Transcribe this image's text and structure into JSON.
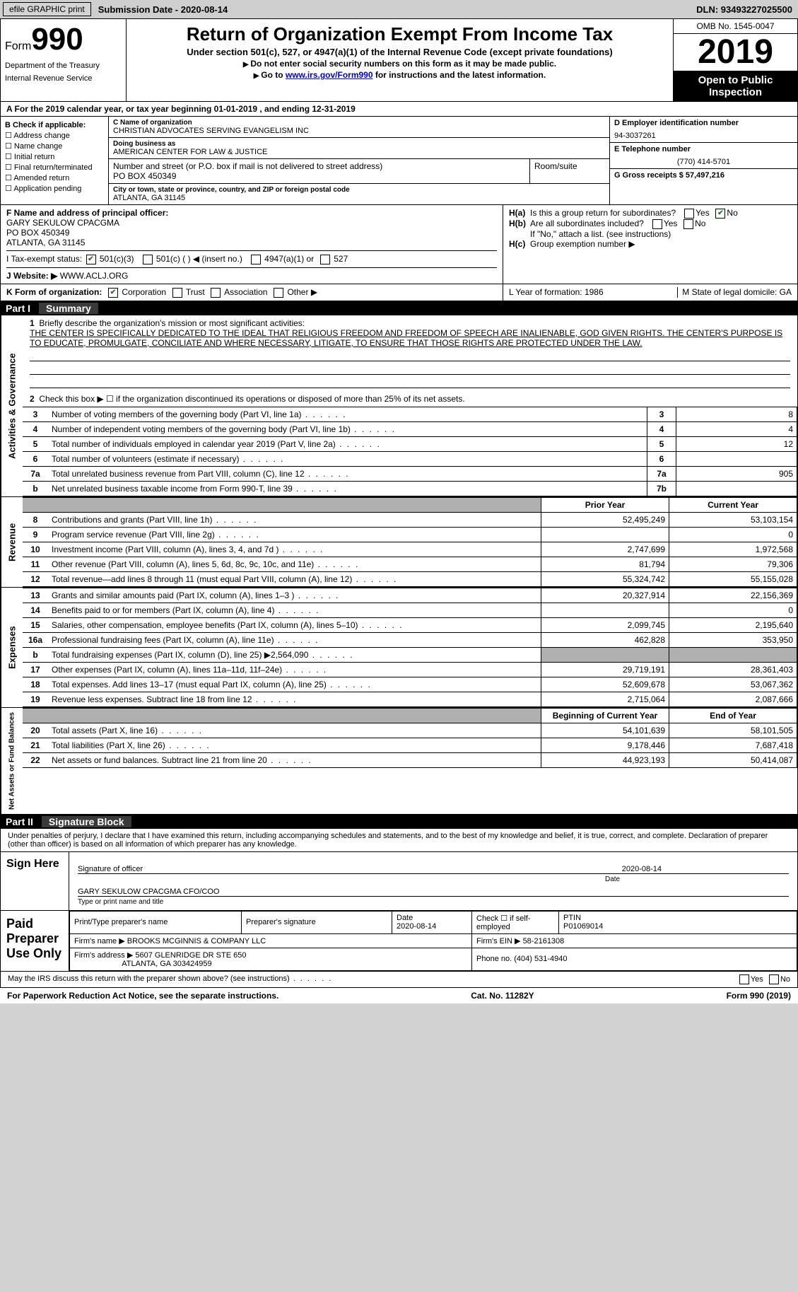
{
  "topbar": {
    "print_label": "efile GRAPHIC print",
    "submission_label": "Submission Date - 2020-08-14",
    "dln": "DLN: 93493227025500"
  },
  "header": {
    "form_label": "Form",
    "form_num": "990",
    "dept": "Department of the Treasury",
    "irs": "Internal Revenue Service",
    "title": "Return of Organization Exempt From Income Tax",
    "subtitle": "Under section 501(c), 527, or 4947(a)(1) of the Internal Revenue Code (except private foundations)",
    "note1": "Do not enter social security numbers on this form as it may be made public.",
    "note2_pre": "Go to ",
    "note2_link": "www.irs.gov/Form990",
    "note2_post": " for instructions and the latest information.",
    "omb": "OMB No. 1545-0047",
    "year": "2019",
    "open_public": "Open to Public Inspection"
  },
  "period": "A For the 2019 calendar year, or tax year beginning 01-01-2019   , and ending 12-31-2019",
  "blockB": {
    "title": "B Check if applicable:",
    "items": [
      "Address change",
      "Name change",
      "Initial return",
      "Final return/terminated",
      "Amended return",
      "Application pending"
    ]
  },
  "blockC": {
    "name_lbl": "C Name of organization",
    "name": "CHRISTIAN ADVOCATES SERVING EVANGELISM INC",
    "dba_lbl": "Doing business as",
    "dba": "AMERICAN CENTER FOR LAW & JUSTICE",
    "addr_lbl": "Number and street (or P.O. box if mail is not delivered to street address)",
    "addr": "PO BOX 450349",
    "room_lbl": "Room/suite",
    "city_lbl": "City or town, state or province, country, and ZIP or foreign postal code",
    "city": "ATLANTA, GA  31145"
  },
  "blockD": {
    "lbl": "D Employer identification number",
    "val": "94-3037261"
  },
  "blockE": {
    "lbl": "E Telephone number",
    "val": "(770) 414-5701"
  },
  "blockG": {
    "lbl": "G Gross receipts $ 57,497,216"
  },
  "blockF": {
    "lbl": "F Name and address of principal officer:",
    "name": "GARY SEKULOW CPACGMA",
    "addr1": "PO BOX 450349",
    "addr2": "ATLANTA, GA  31145"
  },
  "blockH": {
    "a": "Is this a group return for subordinates?",
    "b": "Are all subordinates included?",
    "note": "If \"No,\" attach a list. (see instructions)",
    "c": "Group exemption number ▶",
    "yes": "Yes",
    "no": "No"
  },
  "taxexempt": {
    "lbl": "I    Tax-exempt status:",
    "o1": "501(c)(3)",
    "o2": "501(c) (  ) ◀ (insert no.)",
    "o3": "4947(a)(1) or",
    "o4": "527"
  },
  "website": {
    "lbl": "J    Website: ▶",
    "val": "WWW.ACLJ.ORG"
  },
  "formorg": {
    "lbl": "K Form of organization:",
    "o1": "Corporation",
    "o2": "Trust",
    "o3": "Association",
    "o4": "Other ▶"
  },
  "yearform": "L Year of formation: 1986",
  "domicile": "M State of legal domicile: GA",
  "part1": {
    "num": "Part I",
    "title": "Summary"
  },
  "summary": {
    "q1": "Briefly describe the organization's mission or most significant activities:",
    "mission": "THE CENTER IS SPECIFICALLY DEDICATED TO THE IDEAL THAT RELIGIOUS FREEDOM AND FREEDOM OF SPEECH ARE INALIENABLE, GOD GIVEN RIGHTS. THE CENTER'S PURPOSE IS TO EDUCATE, PROMULGATE, CONCILIATE AND WHERE NECESSARY, LITIGATE, TO ENSURE THAT THOSE RIGHTS ARE PROTECTED UNDER THE LAW.",
    "q2": "Check this box ▶ ☐  if the organization discontinued its operations or disposed of more than 25% of its net assets."
  },
  "side_labels": {
    "ag": "Activities & Governance",
    "rev": "Revenue",
    "exp": "Expenses",
    "nab": "Net Assets or Fund Balances"
  },
  "gov_rows": [
    {
      "n": "3",
      "d": "Number of voting members of the governing body (Part VI, line 1a)",
      "r": "3",
      "v": "8"
    },
    {
      "n": "4",
      "d": "Number of independent voting members of the governing body (Part VI, line 1b)",
      "r": "4",
      "v": "4"
    },
    {
      "n": "5",
      "d": "Total number of individuals employed in calendar year 2019 (Part V, line 2a)",
      "r": "5",
      "v": "12"
    },
    {
      "n": "6",
      "d": "Total number of volunteers (estimate if necessary)",
      "r": "6",
      "v": ""
    },
    {
      "n": "7a",
      "d": "Total unrelated business revenue from Part VIII, column (C), line 12",
      "r": "7a",
      "v": "905"
    },
    {
      "n": "b",
      "d": "Net unrelated business taxable income from Form 990-T, line 39",
      "r": "7b",
      "v": ""
    }
  ],
  "money_header": {
    "prior": "Prior Year",
    "current": "Current Year"
  },
  "rev_rows": [
    {
      "n": "8",
      "d": "Contributions and grants (Part VIII, line 1h)",
      "p": "52,495,249",
      "c": "53,103,154"
    },
    {
      "n": "9",
      "d": "Program service revenue (Part VIII, line 2g)",
      "p": "",
      "c": "0"
    },
    {
      "n": "10",
      "d": "Investment income (Part VIII, column (A), lines 3, 4, and 7d )",
      "p": "2,747,699",
      "c": "1,972,568"
    },
    {
      "n": "11",
      "d": "Other revenue (Part VIII, column (A), lines 5, 6d, 8c, 9c, 10c, and 11e)",
      "p": "81,794",
      "c": "79,306"
    },
    {
      "n": "12",
      "d": "Total revenue—add lines 8 through 11 (must equal Part VIII, column (A), line 12)",
      "p": "55,324,742",
      "c": "55,155,028"
    }
  ],
  "exp_rows": [
    {
      "n": "13",
      "d": "Grants and similar amounts paid (Part IX, column (A), lines 1–3 )",
      "p": "20,327,914",
      "c": "22,156,369"
    },
    {
      "n": "14",
      "d": "Benefits paid to or for members (Part IX, column (A), line 4)",
      "p": "",
      "c": "0"
    },
    {
      "n": "15",
      "d": "Salaries, other compensation, employee benefits (Part IX, column (A), lines 5–10)",
      "p": "2,099,745",
      "c": "2,195,640"
    },
    {
      "n": "16a",
      "d": "Professional fundraising fees (Part IX, column (A), line 11e)",
      "p": "462,828",
      "c": "353,950"
    },
    {
      "n": "b",
      "d": "Total fundraising expenses (Part IX, column (D), line 25) ▶2,564,090",
      "p": "SHADE",
      "c": "SHADE"
    },
    {
      "n": "17",
      "d": "Other expenses (Part IX, column (A), lines 11a–11d, 11f–24e)",
      "p": "29,719,191",
      "c": "28,361,403"
    },
    {
      "n": "18",
      "d": "Total expenses. Add lines 13–17 (must equal Part IX, column (A), line 25)",
      "p": "52,609,678",
      "c": "53,067,362"
    },
    {
      "n": "19",
      "d": "Revenue less expenses. Subtract line 18 from line 12",
      "p": "2,715,064",
      "c": "2,087,666"
    }
  ],
  "bal_header": {
    "beg": "Beginning of Current Year",
    "end": "End of Year"
  },
  "bal_rows": [
    {
      "n": "20",
      "d": "Total assets (Part X, line 16)",
      "p": "54,101,639",
      "c": "58,101,505"
    },
    {
      "n": "21",
      "d": "Total liabilities (Part X, line 26)",
      "p": "9,178,446",
      "c": "7,687,418"
    },
    {
      "n": "22",
      "d": "Net assets or fund balances. Subtract line 21 from line 20",
      "p": "44,923,193",
      "c": "50,414,087"
    }
  ],
  "part2": {
    "num": "Part II",
    "title": "Signature Block"
  },
  "declare": "Under penalties of perjury, I declare that I have examined this return, including accompanying schedules and statements, and to the best of my knowledge and belief, it is true, correct, and complete. Declaration of preparer (other than officer) is based on all information of which preparer has any knowledge.",
  "sign": {
    "side": "Sign Here",
    "sig_lbl": "Signature of officer",
    "date_lbl": "Date",
    "date_val": "2020-08-14",
    "name_lbl": "Type or print name and title",
    "name_val": "GARY SEKULOW CPACGMA  CFO/COO"
  },
  "prep": {
    "side": "Paid Preparer Use Only",
    "h1": "Print/Type preparer's name",
    "h2": "Preparer's signature",
    "h3": "Date",
    "h3v": "2020-08-14",
    "h4": "Check ☐ if self-employed",
    "h5": "PTIN",
    "h5v": "P01069014",
    "firm_lbl": "Firm's name    ▶",
    "firm": "BROOKS MCGINNIS & COMPANY LLC",
    "ein_lbl": "Firm's EIN ▶",
    "ein": "58-2161308",
    "addr_lbl": "Firm's address ▶",
    "addr1": "5607 GLENRIDGE DR STE 650",
    "addr2": "ATLANTA, GA  303424959",
    "phone_lbl": "Phone no.",
    "phone": "(404) 531-4940"
  },
  "discuss": "May the IRS discuss this return with the preparer shown above? (see instructions)",
  "footer": {
    "left": "For Paperwork Reduction Act Notice, see the separate instructions.",
    "mid": "Cat. No. 11282Y",
    "right": "Form 990 (2019)"
  }
}
